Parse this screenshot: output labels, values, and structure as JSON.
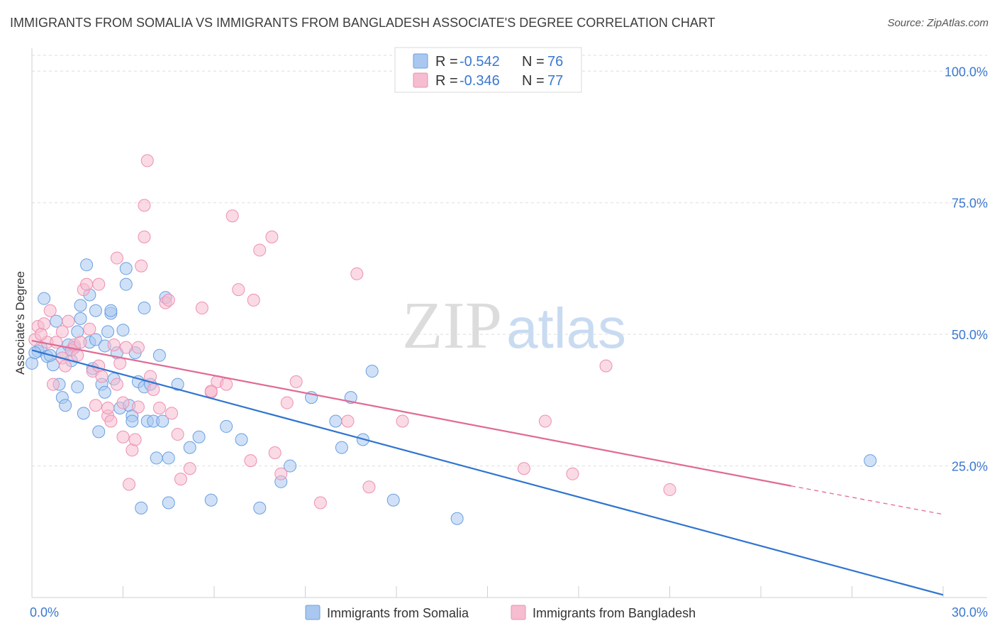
{
  "header": {
    "title": "IMMIGRANTS FROM SOMALIA VS IMMIGRANTS FROM BANGLADESH ASSOCIATE'S DEGREE CORRELATION CHART",
    "source": "Source: ZipAtlas.com"
  },
  "watermark": {
    "zip": "ZIP",
    "atlas": "atlas"
  },
  "colors": {
    "somalia_fill": "#a9c8f0",
    "somalia_stroke": "#6a9fe0",
    "somalia_line": "#2f74d0",
    "bangladesh_fill": "#f6bcd0",
    "bangladesh_stroke": "#ee8fb0",
    "bangladesh_line": "#e06a95",
    "value_text": "#3a78d0",
    "grid": "#dedede"
  },
  "stats": {
    "somalia": {
      "r_label": "R =",
      "r_value": "-0.542",
      "n_label": "N =",
      "n_value": "76"
    },
    "bangladesh": {
      "r_label": "R =",
      "r_value": "-0.346",
      "n_label": "N =",
      "n_value": "77"
    }
  },
  "chart_data": {
    "type": "scatter",
    "title": "IMMIGRANTS FROM SOMALIA VS IMMIGRANTS FROM BANGLADESH ASSOCIATE'S DEGREE CORRELATION CHART",
    "xlabel": "",
    "ylabel": "Associate's Degree",
    "xlim": [
      0,
      30
    ],
    "ylim": [
      0,
      103
    ],
    "x_tick_labels": [
      "0.0%",
      "30.0%"
    ],
    "y_ticks": [
      25,
      50,
      75,
      100
    ],
    "y_tick_labels": [
      "25.0%",
      "50.0%",
      "75.0%",
      "100.0%"
    ],
    "grid": true,
    "legend_position": "bottom",
    "series": [
      {
        "name": "Immigrants from Somalia",
        "color": "#6a9fe0",
        "trend": {
          "x": [
            0,
            30
          ],
          "y": [
            47.0,
            0.5
          ]
        },
        "points": [
          [
            0.0,
            44.5
          ],
          [
            0.2,
            46.8
          ],
          [
            0.3,
            47.5
          ],
          [
            0.4,
            56.8
          ],
          [
            0.5,
            45.8
          ],
          [
            0.7,
            44.2
          ],
          [
            0.8,
            52.5
          ],
          [
            0.9,
            40.5
          ],
          [
            1.0,
            46.5
          ],
          [
            1.0,
            38.0
          ],
          [
            1.1,
            36.5
          ],
          [
            1.2,
            48.0
          ],
          [
            1.3,
            45.0
          ],
          [
            1.4,
            47.5
          ],
          [
            1.5,
            40.0
          ],
          [
            1.5,
            50.5
          ],
          [
            1.6,
            55.5
          ],
          [
            1.6,
            53.0
          ],
          [
            1.7,
            35.0
          ],
          [
            1.8,
            63.2
          ],
          [
            1.9,
            48.5
          ],
          [
            1.9,
            57.5
          ],
          [
            2.0,
            43.5
          ],
          [
            2.1,
            49.0
          ],
          [
            2.1,
            54.5
          ],
          [
            2.2,
            31.5
          ],
          [
            2.3,
            40.5
          ],
          [
            2.4,
            39.0
          ],
          [
            2.4,
            47.8
          ],
          [
            2.5,
            50.5
          ],
          [
            2.6,
            54.0
          ],
          [
            2.6,
            54.5
          ],
          [
            2.7,
            41.5
          ],
          [
            2.8,
            46.5
          ],
          [
            2.9,
            36.0
          ],
          [
            3.0,
            50.8
          ],
          [
            3.1,
            62.5
          ],
          [
            3.1,
            59.5
          ],
          [
            3.2,
            36.5
          ],
          [
            3.3,
            34.5
          ],
          [
            3.3,
            33.5
          ],
          [
            3.4,
            46.5
          ],
          [
            3.5,
            41.0
          ],
          [
            3.6,
            17.0
          ],
          [
            3.7,
            40.0
          ],
          [
            3.7,
            55.0
          ],
          [
            3.8,
            33.5
          ],
          [
            3.9,
            40.5
          ],
          [
            4.0,
            33.5
          ],
          [
            4.1,
            26.5
          ],
          [
            4.2,
            46.0
          ],
          [
            4.3,
            33.5
          ],
          [
            4.4,
            57.0
          ],
          [
            4.5,
            26.5
          ],
          [
            4.5,
            18.0
          ],
          [
            4.8,
            40.5
          ],
          [
            5.2,
            28.5
          ],
          [
            5.5,
            30.5
          ],
          [
            5.9,
            18.5
          ],
          [
            6.4,
            32.5
          ],
          [
            6.9,
            30.0
          ],
          [
            7.5,
            17.0
          ],
          [
            8.2,
            22.0
          ],
          [
            8.5,
            25.0
          ],
          [
            9.2,
            38.0
          ],
          [
            10.0,
            33.5
          ],
          [
            10.2,
            28.5
          ],
          [
            10.5,
            38.0
          ],
          [
            10.9,
            30.0
          ],
          [
            11.2,
            43.0
          ],
          [
            11.9,
            18.5
          ],
          [
            14.0,
            15.0
          ],
          [
            27.6,
            26.0
          ],
          [
            0.6,
            46.0
          ],
          [
            1.3,
            47.0
          ],
          [
            0.1,
            46.5
          ]
        ]
      },
      {
        "name": "Immigrants from Bangladesh",
        "color": "#ee8fb0",
        "trend": {
          "x": [
            0,
            25
          ],
          "y": [
            48.8,
            21.2
          ]
        },
        "trend_dashed": {
          "x": [
            25,
            30
          ],
          "y": [
            21.2,
            15.8
          ]
        },
        "points": [
          [
            0.1,
            49.0
          ],
          [
            0.2,
            51.5
          ],
          [
            0.4,
            52.0
          ],
          [
            0.5,
            48.5
          ],
          [
            0.6,
            54.5
          ],
          [
            0.7,
            40.5
          ],
          [
            0.8,
            48.5
          ],
          [
            1.0,
            45.5
          ],
          [
            1.1,
            44.0
          ],
          [
            1.2,
            52.5
          ],
          [
            1.3,
            47.0
          ],
          [
            1.4,
            48.0
          ],
          [
            1.5,
            46.0
          ],
          [
            1.6,
            48.5
          ],
          [
            1.7,
            58.5
          ],
          [
            1.8,
            59.5
          ],
          [
            1.9,
            51.0
          ],
          [
            2.0,
            43.0
          ],
          [
            2.1,
            36.5
          ],
          [
            2.2,
            44.0
          ],
          [
            2.3,
            42.0
          ],
          [
            2.5,
            34.5
          ],
          [
            2.5,
            36.0
          ],
          [
            2.6,
            33.5
          ],
          [
            2.7,
            48.0
          ],
          [
            2.8,
            40.5
          ],
          [
            2.9,
            44.5
          ],
          [
            3.0,
            37.0
          ],
          [
            3.0,
            30.5
          ],
          [
            3.1,
            47.5
          ],
          [
            3.2,
            21.5
          ],
          [
            3.3,
            28.0
          ],
          [
            3.4,
            30.0
          ],
          [
            3.5,
            47.5
          ],
          [
            3.7,
            68.5
          ],
          [
            3.7,
            74.5
          ],
          [
            3.8,
            83.0
          ],
          [
            3.9,
            42.0
          ],
          [
            4.0,
            39.5
          ],
          [
            4.2,
            36.0
          ],
          [
            4.4,
            56.0
          ],
          [
            4.5,
            56.5
          ],
          [
            4.6,
            35.0
          ],
          [
            4.8,
            31.0
          ],
          [
            4.9,
            22.5
          ],
          [
            5.2,
            24.5
          ],
          [
            5.6,
            55.0
          ],
          [
            5.9,
            39.0
          ],
          [
            6.1,
            41.0
          ],
          [
            6.4,
            40.5
          ],
          [
            6.6,
            72.5
          ],
          [
            6.8,
            58.5
          ],
          [
            7.2,
            26.0
          ],
          [
            7.3,
            56.5
          ],
          [
            7.5,
            66.0
          ],
          [
            7.9,
            68.5
          ],
          [
            8.0,
            27.5
          ],
          [
            8.2,
            23.5
          ],
          [
            8.4,
            37.0
          ],
          [
            8.7,
            41.0
          ],
          [
            9.5,
            18.0
          ],
          [
            10.4,
            33.5
          ],
          [
            10.7,
            61.5
          ],
          [
            11.1,
            21.0
          ],
          [
            12.2,
            33.5
          ],
          [
            16.2,
            24.5
          ],
          [
            16.9,
            33.5
          ],
          [
            17.8,
            23.5
          ],
          [
            18.9,
            44.0
          ],
          [
            21.0,
            20.5
          ],
          [
            2.8,
            64.5
          ],
          [
            3.6,
            63.0
          ],
          [
            2.2,
            59.5
          ],
          [
            1.0,
            50.5
          ],
          [
            0.3,
            50.0
          ],
          [
            5.9,
            39.2
          ],
          [
            3.5,
            36.2
          ]
        ]
      }
    ]
  }
}
